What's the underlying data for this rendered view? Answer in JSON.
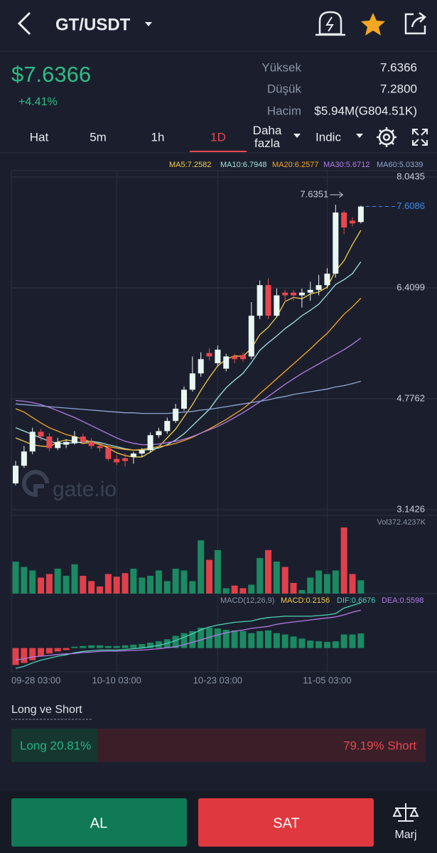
{
  "header": {
    "title": "GT/USDT"
  },
  "ticker": {
    "price": "$7.6366",
    "change": "+4.41%",
    "stats": [
      {
        "label": "Yüksek",
        "value": "7.6366"
      },
      {
        "label": "Düşük",
        "value": "7.2800"
      },
      {
        "label": "Hacim",
        "value": "$5.94M(G804.51K)"
      }
    ]
  },
  "tabs": [
    "Hat",
    "5m",
    "1h",
    "1D",
    "Daha fazla",
    "Indic"
  ],
  "active_tab": 3,
  "watermark": "gate.io",
  "chart_data": [
    {
      "type": "candlestick",
      "categories": [
        "09-28 03:00",
        null,
        null,
        null,
        null,
        null,
        null,
        null,
        null,
        null,
        null,
        null,
        "10-10 03:00",
        null,
        null,
        null,
        null,
        null,
        null,
        null,
        null,
        null,
        null,
        null,
        "10-23 03:00",
        null,
        null,
        null,
        null,
        null,
        null,
        null,
        null,
        null,
        null,
        null,
        null,
        "11-05 03:00",
        null,
        null,
        null,
        null
      ],
      "open": [
        3.53,
        3.79,
        4.0,
        4.29,
        4.22,
        4.05,
        4.1,
        4.12,
        4.22,
        4.14,
        4.08,
        4.05,
        3.89,
        3.9,
        3.92,
        3.97,
        4.02,
        4.24,
        4.3,
        4.45,
        4.63,
        4.91,
        5.15,
        5.45,
        5.3,
        5.22,
        5.4,
        5.42,
        5.4,
        6.0,
        6.45,
        6.0,
        6.34,
        6.34,
        6.3,
        6.34,
        6.38,
        6.45,
        6.62,
        7.52,
        7.4,
        7.38
      ],
      "high": [
        3.86,
        4.08,
        4.35,
        4.33,
        4.27,
        4.2,
        4.18,
        4.3,
        4.26,
        4.2,
        4.12,
        4.1,
        3.95,
        3.98,
        4.0,
        4.05,
        4.28,
        4.35,
        4.5,
        4.7,
        4.96,
        5.4,
        5.46,
        5.52,
        5.56,
        5.44,
        5.44,
        5.46,
        6.2,
        6.52,
        6.55,
        6.4,
        6.38,
        6.38,
        6.4,
        6.5,
        6.6,
        6.7,
        7.6351,
        7.55,
        7.45,
        7.62
      ],
      "low": [
        3.5,
        3.76,
        3.96,
        4.16,
        4.0,
        4.02,
        4.05,
        4.1,
        4.1,
        4.04,
        4.0,
        3.86,
        3.8,
        3.78,
        3.82,
        3.92,
        3.98,
        4.2,
        4.26,
        4.42,
        4.6,
        4.88,
        5.1,
        5.34,
        5.25,
        5.18,
        5.3,
        5.32,
        5.36,
        5.95,
        5.95,
        5.98,
        6.2,
        6.22,
        6.12,
        6.22,
        6.3,
        6.4,
        6.56,
        7.2,
        7.32,
        7.36
      ],
      "close": [
        3.79,
        4.0,
        4.29,
        4.22,
        4.05,
        4.14,
        4.14,
        4.22,
        4.14,
        4.08,
        4.05,
        3.89,
        3.84,
        3.86,
        3.97,
        4.02,
        4.24,
        4.3,
        4.45,
        4.63,
        4.91,
        5.15,
        5.36,
        5.4,
        5.5,
        5.4,
        5.36,
        5.36,
        6.0,
        6.45,
        6.0,
        6.3,
        6.3,
        6.3,
        6.34,
        6.38,
        6.45,
        6.62,
        7.52,
        7.3,
        7.36,
        7.6086
      ],
      "up_color": "#e9f7f2",
      "down_color": "#e8474f",
      "series": [
        {
          "name": "MA5:7.2582",
          "color": "#f2cc4a",
          "values": [
            4.2,
            4.15,
            4.1,
            4.08,
            4.07,
            4.14,
            4.17,
            4.15,
            4.12,
            4.13,
            4.11,
            4.05,
            3.98,
            3.94,
            3.92,
            3.92,
            3.99,
            4.07,
            4.2,
            4.33,
            4.51,
            4.69,
            4.9,
            5.09,
            5.26,
            5.36,
            5.41,
            5.4,
            5.52,
            5.72,
            5.83,
            5.98,
            6.21,
            6.27,
            6.25,
            6.32,
            6.35,
            6.42,
            6.66,
            6.81,
            7.05,
            7.2582
          ]
        },
        {
          "name": "MA10:6.7948",
          "color": "#9fe3e0",
          "values": [
            4.35,
            4.3,
            4.25,
            4.2,
            4.15,
            4.12,
            4.12,
            4.13,
            4.14,
            4.15,
            4.13,
            4.1,
            4.07,
            4.04,
            4.02,
            4.02,
            4.03,
            4.05,
            4.1,
            4.17,
            4.26,
            4.38,
            4.5,
            4.62,
            4.79,
            4.94,
            5.05,
            5.15,
            5.31,
            5.49,
            5.6,
            5.7,
            5.81,
            5.9,
            6.0,
            6.08,
            6.17,
            6.31,
            6.46,
            6.53,
            6.62,
            6.7948
          ]
        },
        {
          "name": "MA20:6.2577",
          "color": "#f5a623",
          "values": [
            4.63,
            4.58,
            4.5,
            4.42,
            4.35,
            4.3,
            4.25,
            4.22,
            4.18,
            4.14,
            4.1,
            4.07,
            4.05,
            4.03,
            4.02,
            4.03,
            4.05,
            4.07,
            4.09,
            4.12,
            4.16,
            4.21,
            4.27,
            4.33,
            4.4,
            4.47,
            4.55,
            4.63,
            4.73,
            4.85,
            4.96,
            5.07,
            5.18,
            5.29,
            5.4,
            5.51,
            5.63,
            5.74,
            5.88,
            6.02,
            6.13,
            6.2577
          ]
        },
        {
          "name": "MA30:5.6712",
          "color": "#b47be6",
          "values": [
            4.75,
            4.74,
            4.72,
            4.69,
            4.65,
            4.6,
            4.55,
            4.5,
            4.44,
            4.38,
            4.32,
            4.26,
            4.2,
            4.15,
            4.12,
            4.1,
            4.1,
            4.11,
            4.13,
            4.15,
            4.18,
            4.22,
            4.27,
            4.32,
            4.37,
            4.43,
            4.5,
            4.57,
            4.65,
            4.73,
            4.81,
            4.9,
            4.99,
            5.07,
            5.15,
            5.22,
            5.29,
            5.36,
            5.43,
            5.5,
            5.58,
            5.6712
          ]
        },
        {
          "name": "MA60:5.0339",
          "color": "#8ea6d6",
          "values": [
            4.7,
            4.69,
            4.68,
            4.67,
            4.66,
            4.65,
            4.64,
            4.63,
            4.62,
            4.61,
            4.6,
            4.59,
            4.58,
            4.57,
            4.57,
            4.56,
            4.56,
            4.56,
            4.56,
            4.57,
            4.58,
            4.59,
            4.61,
            4.62,
            4.64,
            4.66,
            4.68,
            4.7,
            4.72,
            4.74,
            4.76,
            4.79,
            4.81,
            4.84,
            4.86,
            4.88,
            4.9,
            4.92,
            4.95,
            4.97,
            5.0,
            5.0339
          ]
        }
      ],
      "ylim": [
        3.1426,
        8.0435
      ],
      "yticks": [
        8.0435,
        6.4099,
        4.7762,
        3.1426
      ],
      "grid": true,
      "last_price_color": "#3d8bf0"
    },
    {
      "type": "bar",
      "title": "Vol372.4237K",
      "values": [
        180,
        150,
        130,
        90,
        110,
        140,
        100,
        165,
        100,
        70,
        40,
        110,
        95,
        115,
        140,
        90,
        100,
        130,
        70,
        140,
        130,
        70,
        300,
        190,
        245,
        30,
        45,
        30,
        50,
        200,
        245,
        180,
        150,
        60,
        20,
        90,
        130,
        110,
        130,
        372.4237,
        110,
        75
      ],
      "ylim": [
        0,
        372.4237
      ],
      "up_color": "#1b8a62",
      "down_color": "#e0404a"
    },
    {
      "type": "macd",
      "title": "MACD(12,26,9)",
      "series": [
        {
          "name": "MACD:0.2156",
          "color": "#f2cc4a",
          "values": [
            -0.25,
            -0.22,
            -0.18,
            -0.12,
            -0.08,
            -0.05,
            -0.03,
            0.02,
            0.03,
            0.04,
            0.04,
            0.03,
            0.03,
            0.04,
            0.05,
            0.06,
            0.08,
            0.1,
            0.13,
            0.18,
            0.22,
            0.25,
            0.3,
            0.3,
            0.29,
            0.27,
            0.26,
            0.25,
            0.22,
            0.25,
            0.26,
            0.22,
            0.2,
            0.17,
            0.14,
            0.11,
            0.1,
            0.09,
            0.1,
            0.2,
            0.2,
            0.2156
          ]
        },
        {
          "name": "DIF:0.6676",
          "color": "#4fd1b8",
          "values": [
            -0.3,
            -0.27,
            -0.22,
            -0.18,
            -0.15,
            -0.12,
            -0.1,
            -0.07,
            -0.05,
            -0.04,
            -0.03,
            -0.03,
            -0.03,
            -0.02,
            -0.01,
            0.0,
            0.02,
            0.04,
            0.07,
            0.11,
            0.16,
            0.21,
            0.27,
            0.31,
            0.34,
            0.36,
            0.38,
            0.39,
            0.4,
            0.43,
            0.45,
            0.46,
            0.47,
            0.47,
            0.47,
            0.47,
            0.48,
            0.49,
            0.51,
            0.59,
            0.63,
            0.6676
          ]
        },
        {
          "name": "DEA:0.5598",
          "color": "#b47be6",
          "values": [
            -0.175,
            -0.16,
            -0.13,
            -0.12,
            -0.11,
            -0.095,
            -0.085,
            -0.08,
            -0.065,
            -0.06,
            -0.05,
            -0.045,
            -0.045,
            -0.04,
            -0.035,
            -0.03,
            -0.02,
            -0.01,
            0.005,
            0.02,
            0.05,
            0.085,
            0.12,
            0.16,
            0.195,
            0.225,
            0.25,
            0.265,
            0.29,
            0.305,
            0.32,
            0.35,
            0.37,
            0.385,
            0.4,
            0.415,
            0.43,
            0.445,
            0.46,
            0.49,
            0.53,
            0.5598
          ]
        }
      ],
      "ylim": [
        -0.35,
        0.7
      ],
      "up_color": "#1b8a62",
      "down_color": "#e0404a"
    }
  ],
  "long_short": {
    "title": "Long ve Short",
    "values": [
      20.81,
      79.19
    ],
    "value_labels": [
      "Long 20.81%",
      "79.19% Short"
    ],
    "colors": [
      "#27b383",
      "#e8474f"
    ]
  },
  "buttons": [
    "AL",
    "SAT",
    "Marj"
  ]
}
